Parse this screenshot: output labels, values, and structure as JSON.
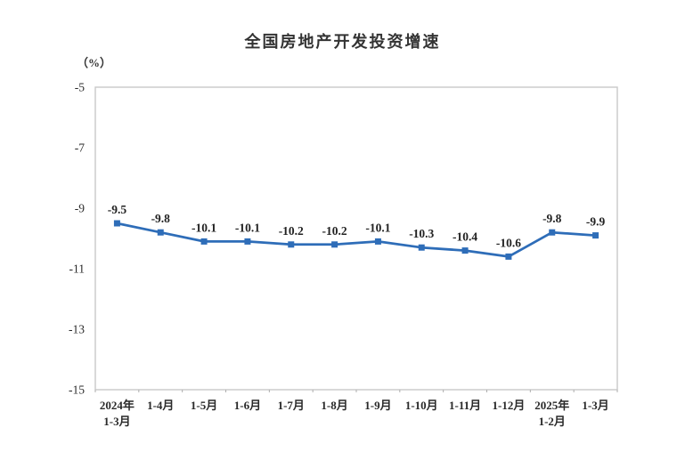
{
  "chart_data": {
    "type": "line",
    "title": "全国房地产开发投资增速",
    "unit_label": "（%）",
    "categories": [
      [
        "2024年",
        "1-3月"
      ],
      [
        "1-4月"
      ],
      [
        "1-5月"
      ],
      [
        "1-6月"
      ],
      [
        "1-7月"
      ],
      [
        "1-8月"
      ],
      [
        "1-9月"
      ],
      [
        "1-10月"
      ],
      [
        "1-11月"
      ],
      [
        "1-12月"
      ],
      [
        "2025年",
        "1-2月"
      ],
      [
        "1-3月"
      ]
    ],
    "values": [
      -9.5,
      -9.8,
      -10.1,
      -10.1,
      -10.2,
      -10.2,
      -10.1,
      -10.3,
      -10.4,
      -10.6,
      -9.8,
      -9.9
    ],
    "data_labels": [
      "-9.5",
      "-9.8",
      "-10.1",
      "-10.1",
      "-10.2",
      "-10.2",
      "-10.1",
      "-10.3",
      "-10.4",
      "-10.6",
      "-9.8",
      "-9.9"
    ],
    "y_ticks": [
      -5,
      -7,
      -9,
      -11,
      -13,
      -15
    ],
    "y_tick_labels": [
      "-5",
      "-7",
      "-9",
      "-11",
      "-13",
      "-15"
    ],
    "ylim": [
      -15,
      -5
    ],
    "xlabel": "",
    "ylabel": "",
    "grid": false,
    "legend_position": "none",
    "line_color": "#2e6db8",
    "marker_shape": "square",
    "plot_border_color": "#c9c9c9",
    "text_color": "#2a2a2a"
  }
}
